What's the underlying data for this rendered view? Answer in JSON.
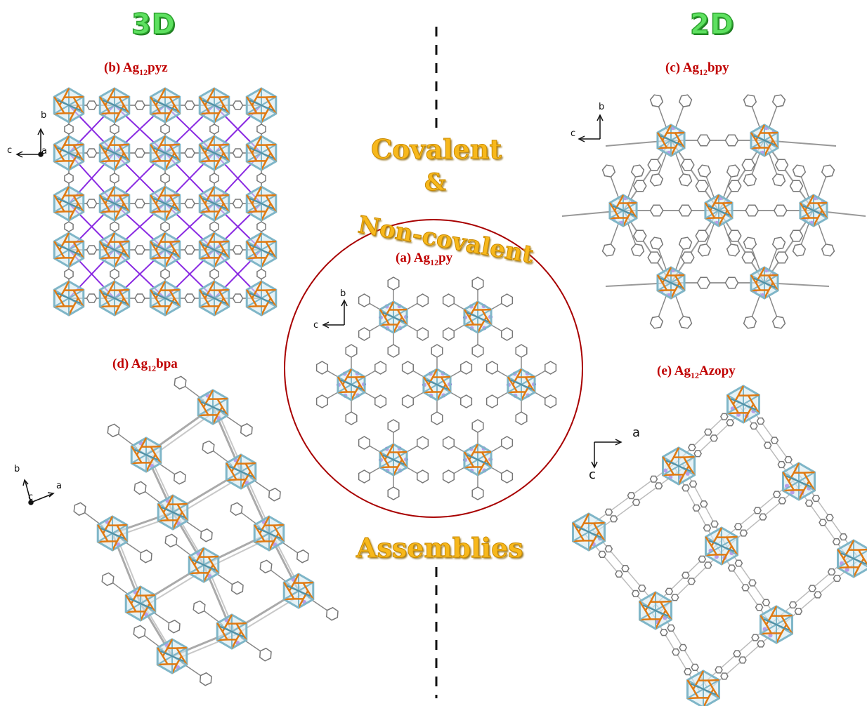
{
  "headers": {
    "left": "3D",
    "right": "2D"
  },
  "center": {
    "covalent": "Covalent",
    "ampersand": "&",
    "noncovalent": "Non-covalent",
    "assemblies": "Assemblies"
  },
  "panels": [
    {
      "id": "a",
      "prefix": "(a) Ag",
      "sub": "12",
      "suffix": "py",
      "axes": {
        "horizontal": "c",
        "vertical": "b"
      }
    },
    {
      "id": "b",
      "prefix": "(b) Ag",
      "sub": "12",
      "suffix": "pyz",
      "axes": {
        "horizontal": "c",
        "vertical": "b",
        "out": "a"
      }
    },
    {
      "id": "c",
      "prefix": "(c) Ag",
      "sub": "12",
      "suffix": "bpy",
      "axes": {
        "horizontal": "c",
        "vertical": "b"
      }
    },
    {
      "id": "d",
      "prefix": "(d) Ag",
      "sub": "12",
      "suffix": "bpa",
      "axes": {
        "horizontal": "a",
        "vertical": "b",
        "out": "c"
      }
    },
    {
      "id": "e",
      "prefix": "(e) Ag",
      "sub": "12",
      "suffix": "Azopy",
      "axes": {
        "horizontal": "a",
        "vertical": "c"
      }
    }
  ],
  "colors": {
    "silver": "#7fb6c8",
    "sulfur": "#e07a12",
    "iodine": "#8a2be2",
    "ligand": "#b0b0b0",
    "label": "#c00000",
    "gold": "#f7b81c",
    "green": "#5ee060"
  }
}
